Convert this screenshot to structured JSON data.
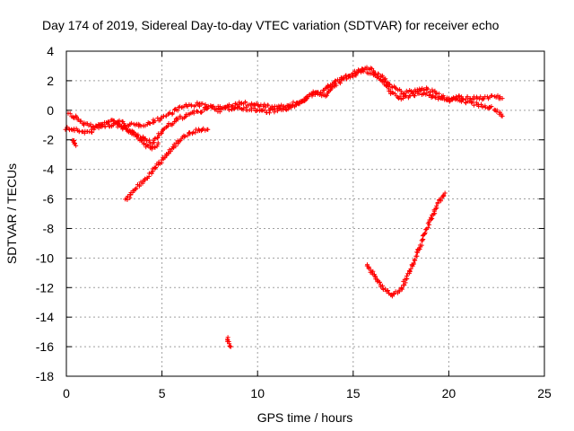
{
  "chart_data": {
    "type": "scatter",
    "title": "Day 174 of 2019, Sidereal Day-to-day VTEC variation (SDTVAR) for receiver echo",
    "xlabel": "GPS time / hours",
    "ylabel": "SDTVAR / TECUs",
    "xlim": [
      0,
      25
    ],
    "ylim": [
      -18,
      4
    ],
    "xticks": [
      0,
      5,
      10,
      15,
      20,
      25
    ],
    "yticks": [
      4,
      2,
      0,
      -2,
      -4,
      -6,
      -8,
      -10,
      -12,
      -14,
      -16,
      -18
    ],
    "grid": true,
    "color": "#ff0000",
    "series": [
      {
        "name": "s1",
        "x": [
          0.0,
          0.3,
          0.7,
          1.2,
          1.8,
          2.3,
          2.8,
          3.3,
          3.8,
          4.3,
          4.8,
          5.3,
          5.8,
          6.3,
          6.8,
          7.3,
          7.8,
          8.4,
          9.0,
          9.5,
          10.0,
          10.5,
          11.0,
          11.5,
          12.0,
          12.5,
          13.0,
          13.5,
          14.0,
          14.5,
          15.0,
          15.5,
          16.0,
          16.5,
          17.0,
          17.5,
          18.0,
          18.5,
          19.0,
          19.5,
          20.0,
          20.5,
          21.0,
          21.5,
          22.0,
          22.5,
          22.8
        ],
        "y": [
          -1.2,
          -1.3,
          -1.4,
          -1.5,
          -1.0,
          -0.7,
          -0.8,
          -1.0,
          -1.0,
          -0.9,
          -0.6,
          -0.3,
          0.1,
          0.3,
          0.4,
          0.3,
          0.2,
          0.1,
          0.2,
          0.1,
          0.0,
          -0.1,
          0.0,
          0.1,
          0.3,
          0.8,
          1.2,
          1.0,
          1.6,
          2.1,
          2.4,
          2.7,
          2.5,
          2.0,
          1.2,
          0.8,
          1.0,
          1.2,
          1.0,
          0.8,
          0.7,
          0.9,
          0.8,
          0.8,
          0.9,
          0.9,
          0.8
        ]
      },
      {
        "name": "s2",
        "x": [
          0.1,
          0.5,
          0.9,
          1.5,
          2.0,
          2.6,
          3.1,
          3.6,
          4.1,
          4.5,
          5.0,
          5.5,
          6.0,
          6.5,
          7.0,
          7.5,
          8.0,
          8.6,
          9.2,
          9.8,
          10.4,
          11.0,
          11.6,
          12.2,
          12.8,
          13.4,
          14.0,
          14.6,
          15.2,
          15.8,
          16.4,
          17.0,
          17.6,
          18.2,
          18.8,
          19.4,
          20.0,
          20.6,
          21.2,
          21.8,
          22.4,
          22.8
        ],
        "y": [
          -0.3,
          -0.5,
          -0.9,
          -1.0,
          -1.1,
          -0.9,
          -1.2,
          -1.6,
          -2.0,
          -2.2,
          -1.4,
          -0.9,
          -0.5,
          -0.2,
          -0.1,
          0.2,
          0.0,
          0.3,
          0.5,
          0.4,
          0.3,
          0.2,
          0.3,
          0.6,
          1.0,
          1.3,
          1.9,
          2.3,
          2.6,
          2.9,
          2.4,
          1.6,
          1.2,
          1.3,
          1.5,
          1.1,
          0.8,
          0.7,
          0.5,
          0.3,
          0.1,
          -0.4
        ]
      },
      {
        "name": "s3",
        "x": [
          2.7,
          3.1,
          3.5,
          3.9,
          4.2,
          4.5,
          4.8
        ],
        "y": [
          -1.0,
          -1.3,
          -1.6,
          -2.0,
          -2.4,
          -2.6,
          -2.2
        ]
      },
      {
        "name": "s4",
        "x": [
          0.3,
          0.4,
          0.5
        ],
        "y": [
          -2.0,
          -2.2,
          -2.4
        ]
      },
      {
        "name": "s5",
        "x": [
          3.1,
          3.5,
          4.0,
          4.5,
          5.0,
          5.5,
          6.0,
          6.5,
          7.0,
          7.4
        ],
        "y": [
          -6.1,
          -5.5,
          -4.8,
          -4.1,
          -3.4,
          -2.6,
          -1.9,
          -1.5,
          -1.3,
          -1.3
        ]
      },
      {
        "name": "s6",
        "x": [
          15.7,
          16.0,
          16.5,
          17.0,
          17.5,
          18.0,
          18.5,
          19.0,
          19.5,
          19.8
        ],
        "y": [
          -10.4,
          -11.0,
          -12.0,
          -12.5,
          -12.1,
          -10.8,
          -9.2,
          -7.5,
          -6.1,
          -5.6
        ]
      },
      {
        "name": "s7",
        "x": [
          8.4,
          8.5,
          8.6
        ],
        "y": [
          -15.4,
          -15.7,
          -16.0
        ]
      }
    ]
  }
}
